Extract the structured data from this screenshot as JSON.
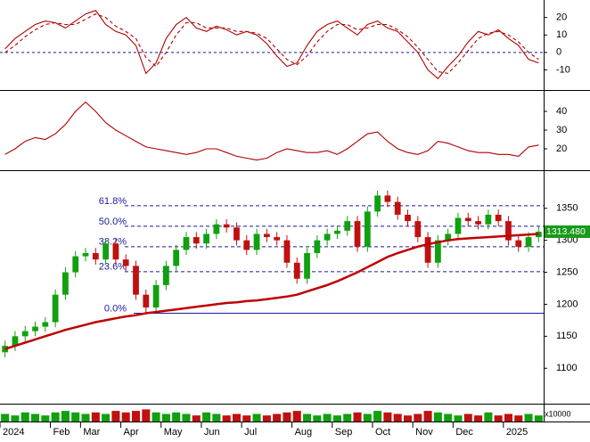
{
  "chart_data": [
    {
      "type": "line",
      "ylim": [
        -21,
        29
      ],
      "yticks": [
        20,
        10,
        0,
        -10
      ],
      "hline": 0,
      "series": [
        {
          "color": "#b00000",
          "style": "solid",
          "values": [
            2,
            8,
            12,
            16,
            18,
            17,
            14,
            18,
            22,
            24,
            16,
            12,
            10,
            4,
            -12,
            -6,
            8,
            16,
            20,
            14,
            12,
            15,
            13,
            10,
            12,
            10,
            5,
            -2,
            -8,
            -6,
            4,
            12,
            16,
            18,
            14,
            10,
            16,
            18,
            14,
            12,
            6,
            0,
            -10,
            -15,
            -8,
            -2,
            6,
            12,
            10,
            13,
            8,
            4,
            -4,
            -6
          ]
        },
        {
          "color": "#b00000",
          "style": "dashed",
          "values": [
            0,
            4,
            9,
            13,
            16,
            17,
            16,
            16,
            19,
            22,
            20,
            15,
            12,
            8,
            -3,
            -8,
            0,
            10,
            17,
            17,
            14,
            14,
            14,
            12,
            12,
            11,
            8,
            2,
            -4,
            -7,
            -2,
            6,
            12,
            16,
            16,
            13,
            14,
            16,
            16,
            13,
            9,
            3,
            -4,
            -11,
            -12,
            -6,
            1,
            8,
            11,
            12,
            10,
            6,
            0,
            -4
          ]
        }
      ]
    },
    {
      "type": "line",
      "ylim": [
        10,
        50
      ],
      "yticks": [
        40,
        30,
        20
      ],
      "series": [
        {
          "color": "#b00000",
          "style": "solid",
          "values": [
            17,
            20,
            24,
            26,
            25,
            28,
            33,
            40,
            45,
            40,
            34,
            30,
            27,
            24,
            21,
            20,
            19,
            18,
            17,
            18,
            20,
            20,
            18,
            16,
            15,
            14,
            15,
            18,
            20,
            19,
            18,
            18,
            19,
            17,
            20,
            24,
            28,
            29,
            24,
            20,
            18,
            17,
            19,
            24,
            23,
            21,
            19,
            18,
            18,
            17,
            17,
            16,
            21,
            22
          ]
        }
      ]
    },
    {
      "type": "candlestick",
      "ylim": [
        1046,
        1404
      ],
      "yticks": [
        1350,
        1300,
        1250,
        1200,
        1150,
        1100
      ],
      "categories": [
        "2024",
        null,
        null,
        null,
        null,
        "Feb",
        null,
        null,
        "Mar",
        null,
        null,
        null,
        "Apr",
        null,
        null,
        null,
        "May",
        null,
        null,
        null,
        "Jun",
        null,
        null,
        null,
        "Jul",
        null,
        null,
        null,
        null,
        "Aug",
        null,
        null,
        null,
        "Sep",
        null,
        null,
        null,
        "Oct",
        null,
        null,
        null,
        "Nov",
        null,
        null,
        null,
        "Dec",
        null,
        null,
        null,
        null,
        "2025",
        null,
        null,
        null
      ],
      "up_color": "#10a010",
      "down_color": "#c01010",
      "open": [
        1125,
        1135,
        1150,
        1158,
        1165,
        1172,
        1215,
        1250,
        1275,
        1280,
        1270,
        1295,
        1270,
        1260,
        1215,
        1195,
        1230,
        1260,
        1285,
        1305,
        1295,
        1310,
        1325,
        1320,
        1300,
        1285,
        1310,
        1305,
        1300,
        1265,
        1240,
        1280,
        1300,
        1310,
        1315,
        1330,
        1290,
        1345,
        1370,
        1360,
        1340,
        1330,
        1305,
        1265,
        1300,
        1310,
        1335,
        1330,
        1325,
        1340,
        1330,
        1300,
        1290,
        1305
      ],
      "high": [
        1143,
        1158,
        1166,
        1173,
        1180,
        1223,
        1258,
        1283,
        1288,
        1288,
        1303,
        1303,
        1278,
        1268,
        1223,
        1238,
        1268,
        1293,
        1313,
        1313,
        1318,
        1333,
        1333,
        1328,
        1308,
        1318,
        1318,
        1313,
        1308,
        1273,
        1288,
        1308,
        1318,
        1323,
        1338,
        1338,
        1353,
        1378,
        1378,
        1368,
        1348,
        1338,
        1313,
        1308,
        1318,
        1343,
        1343,
        1338,
        1348,
        1348,
        1338,
        1308,
        1313,
        1322
      ],
      "low": [
        1117,
        1127,
        1142,
        1150,
        1157,
        1164,
        1207,
        1242,
        1267,
        1262,
        1262,
        1262,
        1252,
        1207,
        1187,
        1187,
        1222,
        1252,
        1277,
        1287,
        1287,
        1302,
        1312,
        1292,
        1277,
        1277,
        1297,
        1292,
        1257,
        1232,
        1232,
        1272,
        1292,
        1302,
        1307,
        1282,
        1282,
        1337,
        1352,
        1332,
        1322,
        1297,
        1257,
        1257,
        1292,
        1302,
        1322,
        1317,
        1317,
        1322,
        1292,
        1282,
        1282,
        1297
      ],
      "close": [
        1135,
        1150,
        1158,
        1165,
        1172,
        1215,
        1250,
        1275,
        1280,
        1270,
        1295,
        1270,
        1260,
        1215,
        1195,
        1230,
        1260,
        1285,
        1305,
        1295,
        1310,
        1325,
        1320,
        1300,
        1285,
        1310,
        1305,
        1300,
        1265,
        1240,
        1280,
        1300,
        1310,
        1315,
        1330,
        1290,
        1345,
        1370,
        1360,
        1340,
        1330,
        1305,
        1265,
        1300,
        1310,
        1335,
        1330,
        1325,
        1340,
        1330,
        1300,
        1290,
        1305,
        1313.48
      ],
      "ma": {
        "color": "#c00000",
        "values": [
          1130,
          1135,
          1140,
          1145,
          1150,
          1155,
          1160,
          1164,
          1168,
          1172,
          1175,
          1178,
          1181,
          1183,
          1186,
          1188,
          1190,
          1192,
          1194,
          1196,
          1198,
          1200,
          1202,
          1203,
          1205,
          1206,
          1208,
          1210,
          1212,
          1215,
          1220,
          1225,
          1230,
          1236,
          1243,
          1250,
          1258,
          1266,
          1274,
          1280,
          1285,
          1290,
          1294,
          1297,
          1300,
          1302,
          1303,
          1304,
          1305,
          1306,
          1307,
          1308,
          1309,
          1310
        ]
      },
      "fib_levels": [
        {
          "label": "61.8%",
          "value": 1354
        },
        {
          "label": "50.0%",
          "value": 1322
        },
        {
          "label": "38.2%",
          "value": 1290
        },
        {
          "label": "23.6%",
          "value": 1251
        },
        {
          "label": "0.0%",
          "value": 1186
        }
      ],
      "last_price": {
        "value": 1313.48,
        "label": "1313.480"
      }
    },
    {
      "type": "bar",
      "ylim": [
        0,
        10
      ],
      "unit_label": "x10000",
      "values": [
        5,
        4,
        6,
        5,
        4,
        6,
        7,
        6,
        5,
        6,
        5,
        7,
        6,
        7,
        8,
        6,
        5,
        6,
        5,
        4,
        6,
        5,
        4,
        5,
        4,
        5,
        4,
        5,
        6,
        7,
        5,
        4,
        5,
        4,
        5,
        6,
        5,
        7,
        6,
        5,
        4,
        5,
        7,
        6,
        5,
        4,
        5,
        4,
        6,
        4,
        5,
        4,
        5,
        4
      ]
    }
  ]
}
